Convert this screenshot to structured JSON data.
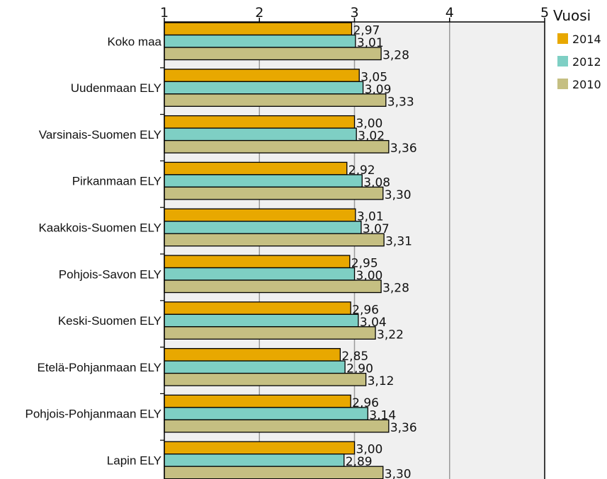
{
  "chart_data": {
    "type": "bar",
    "orientation": "horizontal",
    "categories": [
      "Koko maa",
      "Uudenmaan ELY",
      "Varsinais-Suomen ELY",
      "Pirkanmaan ELY",
      "Kaakkois-Suomen ELY",
      "Pohjois-Savon ELY",
      "Keski-Suomen ELY",
      "Etelä-Pohjanmaan ELY",
      "Pohjois-Pohjanmaan ELY",
      "Lapin ELY"
    ],
    "series": [
      {
        "name": "2014",
        "color": "#E8A800",
        "values": [
          2.97,
          3.05,
          3.0,
          2.92,
          3.01,
          2.95,
          2.96,
          2.85,
          2.96,
          3.0
        ],
        "labels": [
          "2,97",
          "3,05",
          "3,00",
          "2,92",
          "3,01",
          "2,95",
          "2,96",
          "2,85",
          "2,96",
          "3,00"
        ]
      },
      {
        "name": "2012",
        "color": "#7ECFC4",
        "values": [
          3.01,
          3.09,
          3.02,
          3.08,
          3.07,
          3.0,
          3.04,
          2.9,
          3.14,
          2.89
        ],
        "labels": [
          "3,01",
          "3,09",
          "3,02",
          "3,08",
          "3,07",
          "3,00",
          "3,04",
          "2,90",
          "3,14",
          "2,89"
        ]
      },
      {
        "name": "2010",
        "color": "#C5BF82",
        "values": [
          3.28,
          3.33,
          3.36,
          3.3,
          3.31,
          3.28,
          3.22,
          3.12,
          3.36,
          3.3
        ],
        "labels": [
          "3,28",
          "3,33",
          "3,36",
          "3,30",
          "3,31",
          "3,28",
          "3,22",
          "3,12",
          "3,36",
          "3,30"
        ]
      }
    ],
    "xlim": [
      1,
      5
    ],
    "xticks": [
      "1",
      "2",
      "3",
      "4",
      "5"
    ],
    "axis_position": "top",
    "grid": true,
    "legend": {
      "title": "Vuosi",
      "position": "top-right"
    },
    "title": "",
    "xlabel": "",
    "ylabel": ""
  }
}
